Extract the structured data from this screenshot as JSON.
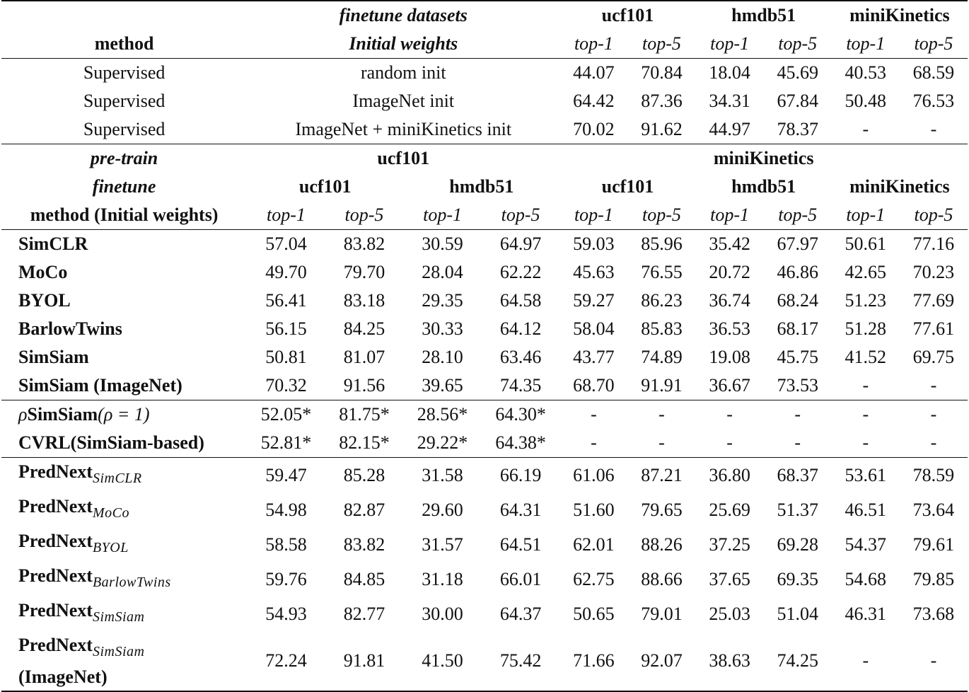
{
  "top_section": {
    "header_row1": {
      "label": "finetune datasets",
      "groups": [
        "ucf101",
        "hmdb51",
        "miniKinetics"
      ]
    },
    "header_row2": {
      "method": "method",
      "label": "Initial weights",
      "metrics": [
        "top-1",
        "top-5",
        "top-1",
        "top-5",
        "top-1",
        "top-5"
      ]
    },
    "rows": [
      {
        "method": "Supervised",
        "init": "random init",
        "values": [
          "44.07",
          "70.84",
          "18.04",
          "45.69",
          "40.53",
          "68.59"
        ]
      },
      {
        "method": "Supervised",
        "init": "ImageNet init",
        "values": [
          "64.42",
          "87.36",
          "34.31",
          "67.84",
          "50.48",
          "76.53"
        ]
      },
      {
        "method": "Supervised",
        "init": "ImageNet + miniKinetics init",
        "values": [
          "70.02",
          "91.62",
          "44.97",
          "78.37",
          "-",
          "-"
        ]
      }
    ]
  },
  "bottom_section": {
    "pretrain_row": {
      "label": "pre-train",
      "groups": [
        "ucf101",
        "miniKinetics"
      ]
    },
    "finetune_row": {
      "label": "finetune",
      "groups": [
        "ucf101",
        "hmdb51",
        "ucf101",
        "hmdb51",
        "miniKinetics"
      ]
    },
    "metric_row": {
      "method": "method (Initial weights)",
      "metrics": [
        "top-1",
        "top-5",
        "top-1",
        "top-5",
        "top-1",
        "top-5",
        "top-1",
        "top-5",
        "top-1",
        "top-5"
      ]
    },
    "group1": [
      {
        "method": "SimCLR",
        "values": [
          "57.04",
          "83.82",
          "30.59",
          "64.97",
          "59.03",
          "85.96",
          "35.42",
          "67.97",
          "50.61",
          "77.16"
        ]
      },
      {
        "method": "MoCo",
        "values": [
          "49.70",
          "79.70",
          "28.04",
          "62.22",
          "45.63",
          "76.55",
          "20.72",
          "46.86",
          "42.65",
          "70.23"
        ]
      },
      {
        "method": "BYOL",
        "values": [
          "56.41",
          "83.18",
          "29.35",
          "64.58",
          "59.27",
          "86.23",
          "36.74",
          "68.24",
          "51.23",
          "77.69"
        ]
      },
      {
        "method": "BarlowTwins",
        "values": [
          "56.15",
          "84.25",
          "30.33",
          "64.12",
          "58.04",
          "85.83",
          "36.53",
          "68.17",
          "51.28",
          "77.61"
        ]
      },
      {
        "method": "SimSiam",
        "values": [
          "50.81",
          "81.07",
          "28.10",
          "63.46",
          "43.77",
          "74.89",
          "19.08",
          "45.75",
          "41.52",
          "69.75"
        ]
      },
      {
        "method": "SimSiam (ImageNet)",
        "values": [
          "70.32",
          "91.56",
          "39.65",
          "74.35",
          "68.70",
          "91.91",
          "36.67",
          "73.53",
          "-",
          "-"
        ]
      }
    ],
    "group2": [
      {
        "method_prefix": "ρ",
        "method": "SimSiam",
        "method_suffix": "(ρ = 1)",
        "values": [
          "52.05*",
          "81.75*",
          "28.56*",
          "64.30*",
          "-",
          "-",
          "-",
          "-",
          "-",
          "-"
        ]
      },
      {
        "method": "CVRL(SimSiam-based)",
        "values": [
          "52.81*",
          "82.15*",
          "29.22*",
          "64.38*",
          "-",
          "-",
          "-",
          "-",
          "-",
          "-"
        ]
      }
    ],
    "group3": [
      {
        "method": "PredNext",
        "sub": "SimCLR",
        "values": [
          "59.47",
          "85.28",
          "31.58",
          "66.19",
          "61.06",
          "87.21",
          "36.80",
          "68.37",
          "53.61",
          "78.59"
        ]
      },
      {
        "method": "PredNext",
        "sub": "MoCo",
        "values": [
          "54.98",
          "82.87",
          "29.60",
          "64.31",
          "51.60",
          "79.65",
          "25.69",
          "51.37",
          "46.51",
          "73.64"
        ]
      },
      {
        "method": "PredNext",
        "sub": "BYOL",
        "values": [
          "58.58",
          "83.82",
          "31.57",
          "64.51",
          "62.01",
          "88.26",
          "37.25",
          "69.28",
          "54.37",
          "79.61"
        ]
      },
      {
        "method": "PredNext",
        "sub": "BarlowTwins",
        "values": [
          "59.76",
          "84.85",
          "31.18",
          "66.01",
          "62.75",
          "88.66",
          "37.65",
          "69.35",
          "54.68",
          "79.85"
        ]
      },
      {
        "method": "PredNext",
        "sub": "SimSiam",
        "values": [
          "54.93",
          "82.77",
          "30.00",
          "64.37",
          "50.65",
          "79.01",
          "25.03",
          "51.04",
          "46.31",
          "73.68"
        ]
      },
      {
        "method": "PredNext",
        "sub": "SimSiam",
        "extra": "(ImageNet)",
        "values": [
          "72.24",
          "91.81",
          "41.50",
          "75.42",
          "71.66",
          "92.07",
          "38.63",
          "74.25",
          "-",
          "-"
        ]
      }
    ]
  }
}
